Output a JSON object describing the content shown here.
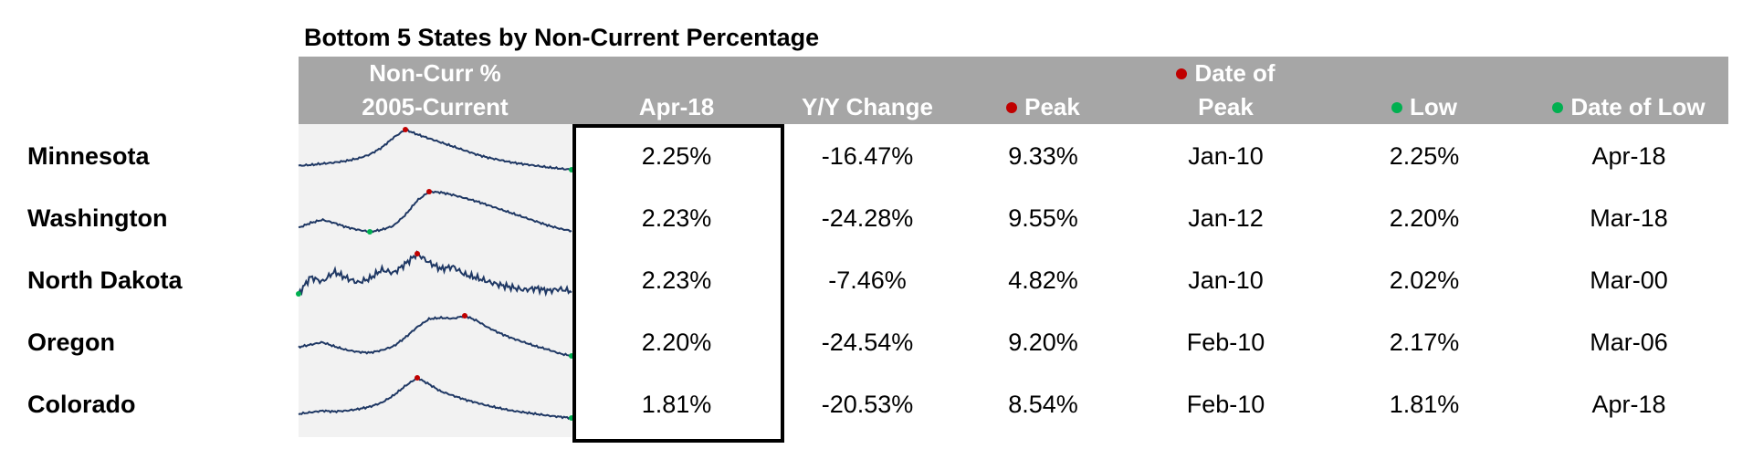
{
  "title": "Bottom 5 States by Non-Current Percentage",
  "headers": {
    "sparkline": [
      "Non-Curr %",
      "2005-Current"
    ],
    "current": "Apr-18",
    "yy": "Y/Y Change",
    "peak": "Peak",
    "date_of_peak": [
      "Date of",
      "Peak"
    ],
    "low": "Low",
    "date_of_low": "Date of Low"
  },
  "colors": {
    "peak_marker": "#c00000",
    "low_marker": "#00b050",
    "line": "#1f3864",
    "header_bg": "#a6a6a6"
  },
  "rows": [
    {
      "state": "Minnesota",
      "current": "2.25%",
      "yy": "-16.47%",
      "peak": "9.33%",
      "peak_date": "Jan-10",
      "low": "2.25%",
      "low_date": "Apr-18"
    },
    {
      "state": "Washington",
      "current": "2.23%",
      "yy": "-24.28%",
      "peak": "9.55%",
      "peak_date": "Jan-12",
      "low": "2.20%",
      "low_date": "Mar-18"
    },
    {
      "state": "North Dakota",
      "current": "2.23%",
      "yy": "-7.46%",
      "peak": "4.82%",
      "peak_date": "Jan-10",
      "low": "2.02%",
      "low_date": "Mar-00"
    },
    {
      "state": "Oregon",
      "current": "2.20%",
      "yy": "-24.54%",
      "peak": "9.20%",
      "peak_date": "Feb-10",
      "low": "2.17%",
      "low_date": "Mar-06"
    },
    {
      "state": "Colorado",
      "current": "1.81%",
      "yy": "-20.53%",
      "peak": "8.54%",
      "peak_date": "Feb-10",
      "low": "1.81%",
      "low_date": "Apr-18"
    }
  ],
  "chart_data": {
    "type": "table",
    "sparkline_type": "line",
    "sparkline_range": [
      "2005",
      "Apr-18"
    ],
    "sparklines": [
      {
        "state": "Minnesota",
        "shape": [
          0.1,
          0.12,
          0.15,
          0.18,
          0.22,
          0.28,
          0.38,
          0.55,
          0.8,
          1.0,
          0.88,
          0.78,
          0.68,
          0.58,
          0.48,
          0.38,
          0.3,
          0.24,
          0.18,
          0.14,
          0.1,
          0.06,
          0.03,
          0.0
        ],
        "peak_index": 9,
        "low_index": 23
      },
      {
        "state": "Washington",
        "shape": [
          0.1,
          0.22,
          0.3,
          0.22,
          0.12,
          0.05,
          0.0,
          0.05,
          0.15,
          0.42,
          0.78,
          1.0,
          0.98,
          0.92,
          0.84,
          0.76,
          0.66,
          0.56,
          0.46,
          0.36,
          0.26,
          0.16,
          0.08,
          0.02
        ],
        "peak_index": 11,
        "low_index": 6
      },
      {
        "state": "North Dakota",
        "shape": [
          0.0,
          0.42,
          0.3,
          0.55,
          0.4,
          0.28,
          0.38,
          0.6,
          0.52,
          0.75,
          1.0,
          0.78,
          0.62,
          0.68,
          0.48,
          0.4,
          0.3,
          0.22,
          0.16,
          0.1,
          0.14,
          0.08,
          0.12,
          0.06
        ],
        "peak_index": 10,
        "low_index": 0
      },
      {
        "state": "Oregon",
        "shape": [
          0.22,
          0.28,
          0.34,
          0.24,
          0.15,
          0.1,
          0.08,
          0.14,
          0.24,
          0.46,
          0.72,
          0.92,
          0.95,
          0.93,
          1.0,
          0.88,
          0.7,
          0.56,
          0.44,
          0.34,
          0.24,
          0.16,
          0.06,
          0.0
        ],
        "peak_index": 14,
        "low_index": 23
      },
      {
        "state": "Colorado",
        "shape": [
          0.1,
          0.14,
          0.18,
          0.16,
          0.18,
          0.22,
          0.28,
          0.38,
          0.56,
          0.8,
          1.0,
          0.84,
          0.66,
          0.56,
          0.46,
          0.38,
          0.3,
          0.24,
          0.18,
          0.14,
          0.1,
          0.06,
          0.03,
          0.0
        ],
        "peak_index": 10,
        "low_index": 23
      }
    ]
  }
}
